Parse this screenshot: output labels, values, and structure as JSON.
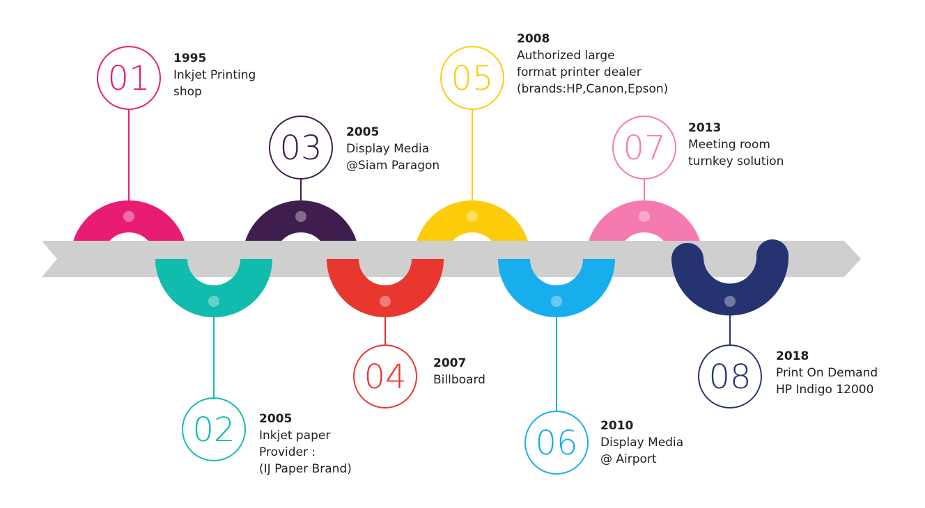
{
  "milestones": [
    {
      "number": "01",
      "year": "1995",
      "lines": [
        "Inkjet Printing",
        "shop"
      ],
      "color": "#e91c74"
    },
    {
      "number": "02",
      "year": "2005",
      "lines": [
        "Inkjet paper",
        "Provider :",
        "(IJ Paper Brand)"
      ],
      "color": "#10bcad"
    },
    {
      "number": "03",
      "year": "2005",
      "lines": [
        "Display Media",
        "@Siam Paragon"
      ],
      "color": "#3f1d4e"
    },
    {
      "number": "04",
      "year": "2007",
      "lines": [
        "Billboard"
      ],
      "color": "#e8372f"
    },
    {
      "number": "05",
      "year": "2008",
      "lines": [
        "Authorized large",
        "format printer dealer",
        "(brands:HP,Canon,Epson)"
      ],
      "color": "#fccc0b"
    },
    {
      "number": "06",
      "year": "2010",
      "lines": [
        "Display Media",
        "@ Airport"
      ],
      "color": "#18aeee"
    },
    {
      "number": "07",
      "year": "2013",
      "lines": [
        "Meeting room",
        "turnkey solution"
      ],
      "color": "#f57aaf"
    },
    {
      "number": "08",
      "year": "2018",
      "lines": [
        "Print On Demand",
        "HP Indigo 12000"
      ],
      "color": "#253470"
    }
  ],
  "arrow_color": "#cfcfcf"
}
